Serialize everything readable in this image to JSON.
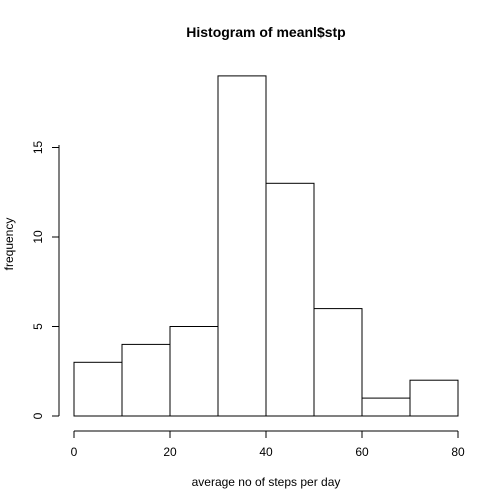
{
  "chart_data": {
    "type": "bar",
    "title": "Histogram of meanl$stp",
    "xlabel": "average no of steps per day",
    "ylabel": "frequency",
    "bins": [
      {
        "start": 0,
        "end": 10,
        "count": 3
      },
      {
        "start": 10,
        "end": 20,
        "count": 4
      },
      {
        "start": 20,
        "end": 30,
        "count": 5
      },
      {
        "start": 30,
        "end": 40,
        "count": 19
      },
      {
        "start": 40,
        "end": 50,
        "count": 13
      },
      {
        "start": 50,
        "end": 60,
        "count": 6
      },
      {
        "start": 60,
        "end": 70,
        "count": 1
      },
      {
        "start": 70,
        "end": 80,
        "count": 2
      }
    ],
    "xlim": [
      0,
      80
    ],
    "ylim": [
      0,
      19
    ],
    "xticks": [
      0,
      20,
      40,
      60,
      80
    ],
    "yticks": [
      0,
      5,
      10,
      15
    ],
    "grid": false,
    "bar_fill": "#ffffff",
    "bar_stroke": "#000000"
  }
}
